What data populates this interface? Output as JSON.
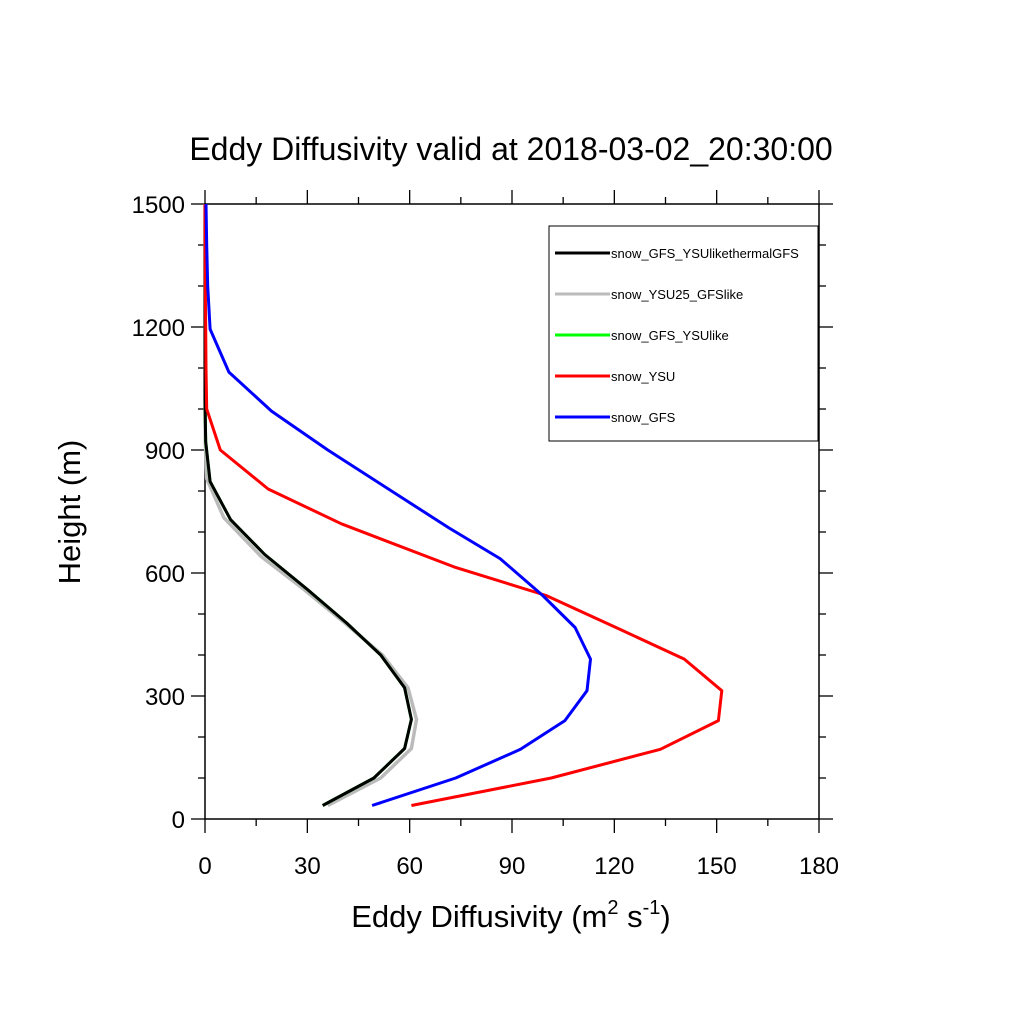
{
  "chart_data": {
    "type": "line",
    "title": "Eddy Diffusivity valid at 2018-03-02_20:30:00",
    "xlabel": {
      "text": "Eddy Diffusivity (m",
      "sup1": "2",
      "mid": " s",
      "sup2": "-1",
      "end": ")"
    },
    "ylabel": "Height (m)",
    "xlim": [
      0,
      180
    ],
    "ylim": [
      0,
      1500
    ],
    "xticks": [
      0,
      30,
      60,
      90,
      120,
      150,
      180
    ],
    "yticks": [
      0,
      300,
      600,
      900,
      1200,
      1500
    ],
    "legend_position": "top-right",
    "series": [
      {
        "name": "snow_GFS_YSUlikethermalGFS",
        "color": "#000000",
        "points": [
          [
            34.5,
            33
          ],
          [
            49.5,
            100
          ],
          [
            58.5,
            172
          ],
          [
            60.5,
            243
          ],
          [
            58.5,
            320
          ],
          [
            51.5,
            400
          ],
          [
            41.5,
            478
          ],
          [
            30,
            560
          ],
          [
            17.5,
            645
          ],
          [
            7.5,
            730
          ],
          [
            1.5,
            823
          ],
          [
            0.2,
            920
          ],
          [
            0,
            1020
          ],
          [
            0,
            1120
          ],
          [
            0,
            1220
          ],
          [
            0,
            1320
          ],
          [
            0,
            1420
          ],
          [
            0,
            1500
          ]
        ]
      },
      {
        "name": "snow_YSU25_GFSlike",
        "color": "#bbbbbb",
        "points": [
          [
            36,
            33
          ],
          [
            51.5,
            100
          ],
          [
            60.5,
            172
          ],
          [
            62,
            243
          ],
          [
            59.5,
            320
          ],
          [
            52,
            400
          ],
          [
            41,
            478
          ],
          [
            29,
            560
          ],
          [
            16.5,
            640
          ],
          [
            5.5,
            735
          ],
          [
            0.5,
            830
          ],
          [
            0.1,
            920
          ],
          [
            0,
            1020
          ],
          [
            0,
            1120
          ],
          [
            0,
            1220
          ],
          [
            0,
            1320
          ],
          [
            0,
            1420
          ],
          [
            0,
            1500
          ]
        ]
      },
      {
        "name": "snow_GFS_YSUlike",
        "color": "#00ff00",
        "points": [
          [
            34.5,
            33
          ],
          [
            49.5,
            100
          ],
          [
            58.5,
            172
          ],
          [
            60.5,
            243
          ],
          [
            58.5,
            320
          ],
          [
            51.5,
            400
          ],
          [
            41.5,
            478
          ],
          [
            30,
            560
          ],
          [
            17.5,
            645
          ],
          [
            7.5,
            730
          ],
          [
            1.5,
            823
          ],
          [
            0.2,
            920
          ],
          [
            0,
            1020
          ],
          [
            0,
            1120
          ],
          [
            0,
            1220
          ],
          [
            0,
            1320
          ],
          [
            0,
            1420
          ],
          [
            0,
            1500
          ]
        ]
      },
      {
        "name": "snow_YSU",
        "color": "#ff0000",
        "points": [
          [
            60.5,
            33
          ],
          [
            101.5,
            100
          ],
          [
            133.5,
            170
          ],
          [
            150.5,
            240
          ],
          [
            151.5,
            313
          ],
          [
            140.5,
            390
          ],
          [
            120.5,
            467
          ],
          [
            100,
            545
          ],
          [
            73,
            615
          ],
          [
            40,
            720
          ],
          [
            18.5,
            805
          ],
          [
            4.5,
            900
          ],
          [
            0.5,
            1000
          ],
          [
            0.3,
            1100
          ],
          [
            0.2,
            1200
          ],
          [
            0.1,
            1300
          ],
          [
            0.05,
            1400
          ],
          [
            0,
            1500
          ]
        ]
      },
      {
        "name": "snow_GFS",
        "color": "#0000ff",
        "points": [
          [
            49,
            33
          ],
          [
            73.5,
            100
          ],
          [
            92.5,
            170
          ],
          [
            105.5,
            240
          ],
          [
            112,
            313
          ],
          [
            113,
            390
          ],
          [
            108.5,
            467
          ],
          [
            99,
            545
          ],
          [
            86.5,
            635
          ],
          [
            71.5,
            710
          ],
          [
            36,
            900
          ],
          [
            19.5,
            995
          ],
          [
            7,
            1090
          ],
          [
            1.5,
            1195
          ],
          [
            0.8,
            1300
          ],
          [
            0.5,
            1400
          ],
          [
            0.3,
            1500
          ]
        ]
      }
    ]
  }
}
